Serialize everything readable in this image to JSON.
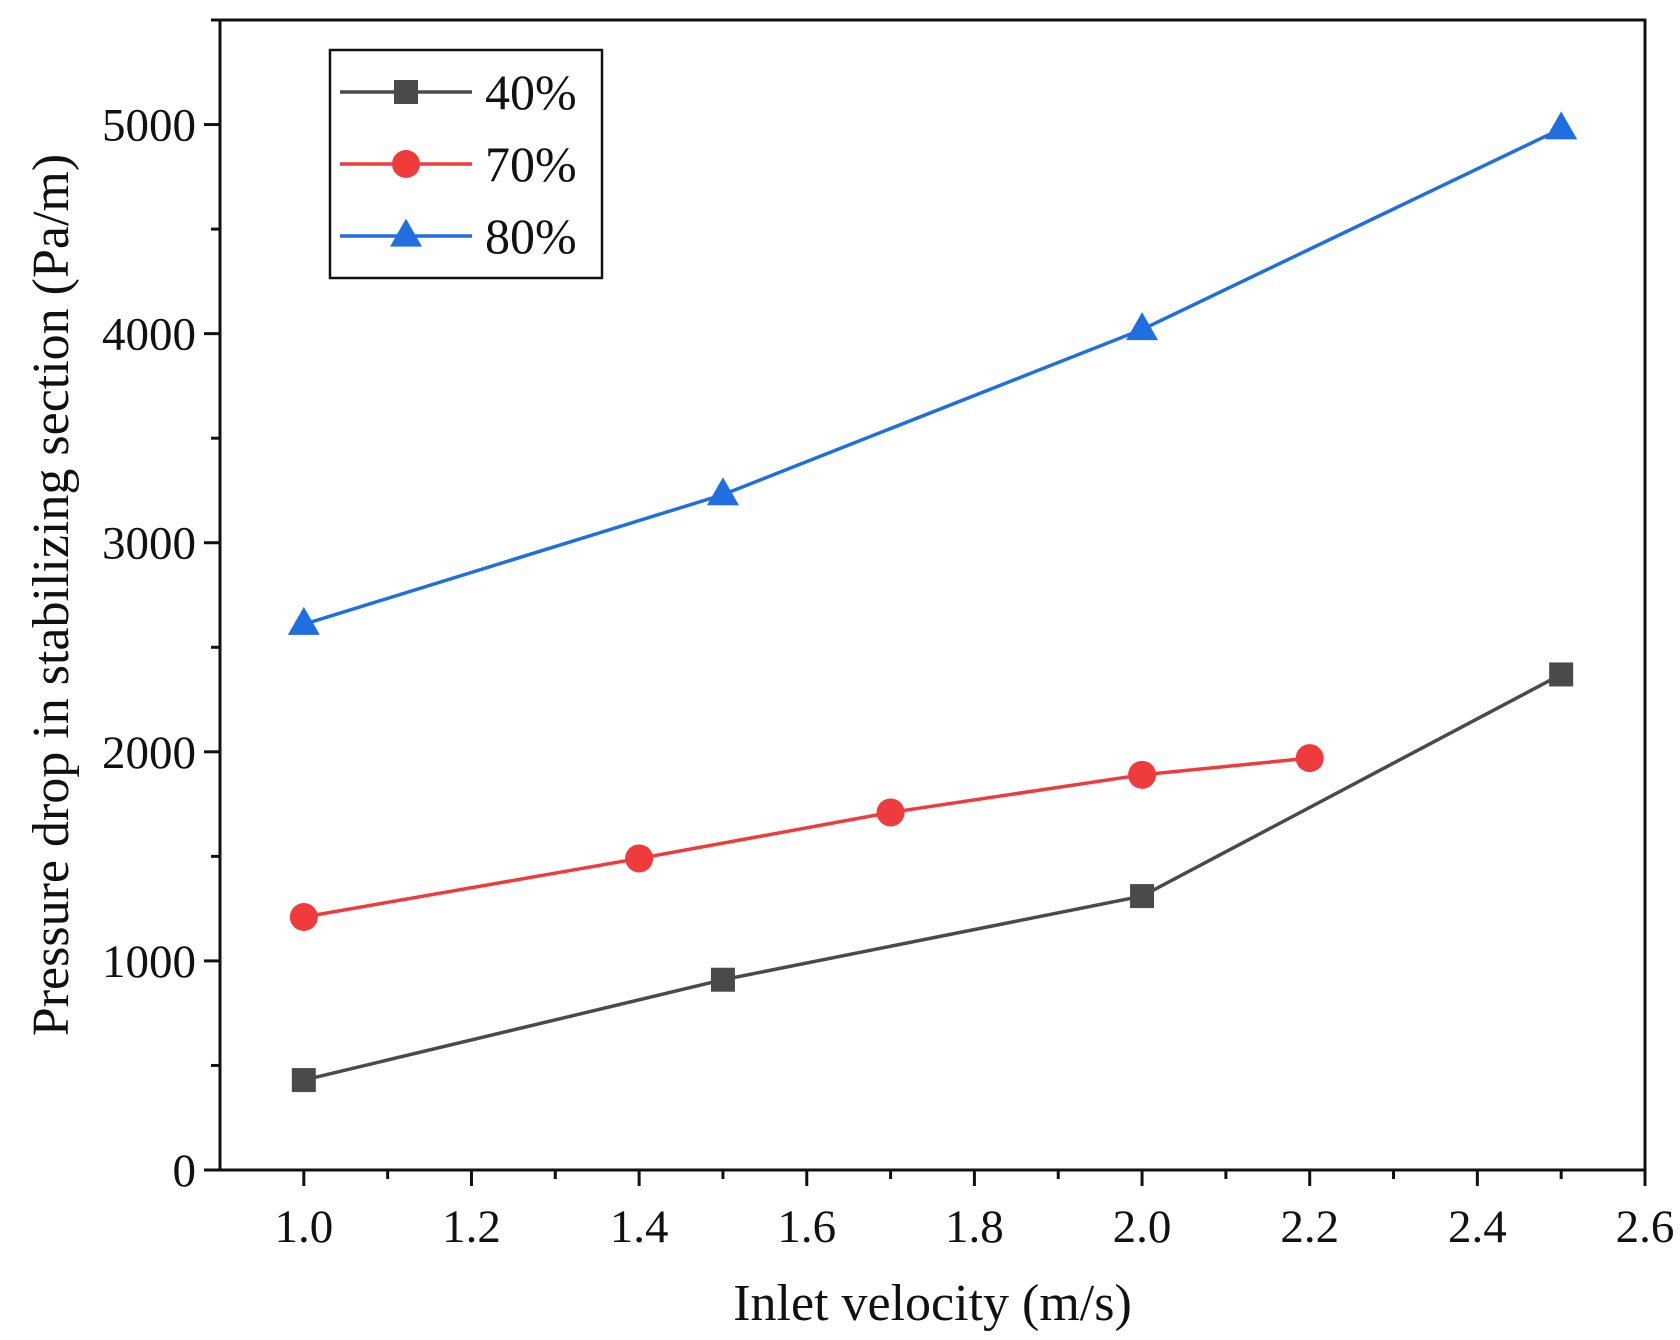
{
  "chart_data": {
    "type": "line",
    "xlabel": "Inlet velocity (m/s)",
    "ylabel": "Pressure drop in stabilizing section (Pa/m)",
    "xlim": [
      0.9,
      2.6
    ],
    "ylim": [
      0,
      5500
    ],
    "x_ticks": [
      "1.0",
      "1.2",
      "1.4",
      "1.6",
      "1.8",
      "2.0",
      "2.2",
      "2.4",
      "2.6"
    ],
    "y_ticks": [
      "0",
      "1000",
      "2000",
      "3000",
      "4000",
      "5000"
    ],
    "grid": false,
    "legend_position": "top-left",
    "series": [
      {
        "name": "40%",
        "color": "#4a4a4a",
        "marker": "square",
        "points": [
          {
            "x": 1.0,
            "y": 430
          },
          {
            "x": 1.5,
            "y": 910
          },
          {
            "x": 2.0,
            "y": 1310
          },
          {
            "x": 2.5,
            "y": 2370
          }
        ]
      },
      {
        "name": "70%",
        "color": "#ef3b3b",
        "marker": "circle",
        "points": [
          {
            "x": 1.0,
            "y": 1210
          },
          {
            "x": 1.4,
            "y": 1490
          },
          {
            "x": 1.7,
            "y": 1710
          },
          {
            "x": 2.0,
            "y": 1890
          },
          {
            "x": 2.2,
            "y": 1970
          }
        ]
      },
      {
        "name": "80%",
        "color": "#1f6fe0",
        "marker": "triangle",
        "points": [
          {
            "x": 1.0,
            "y": 2610
          },
          {
            "x": 1.5,
            "y": 3230
          },
          {
            "x": 2.0,
            "y": 4020
          },
          {
            "x": 2.5,
            "y": 4980
          }
        ]
      }
    ]
  }
}
